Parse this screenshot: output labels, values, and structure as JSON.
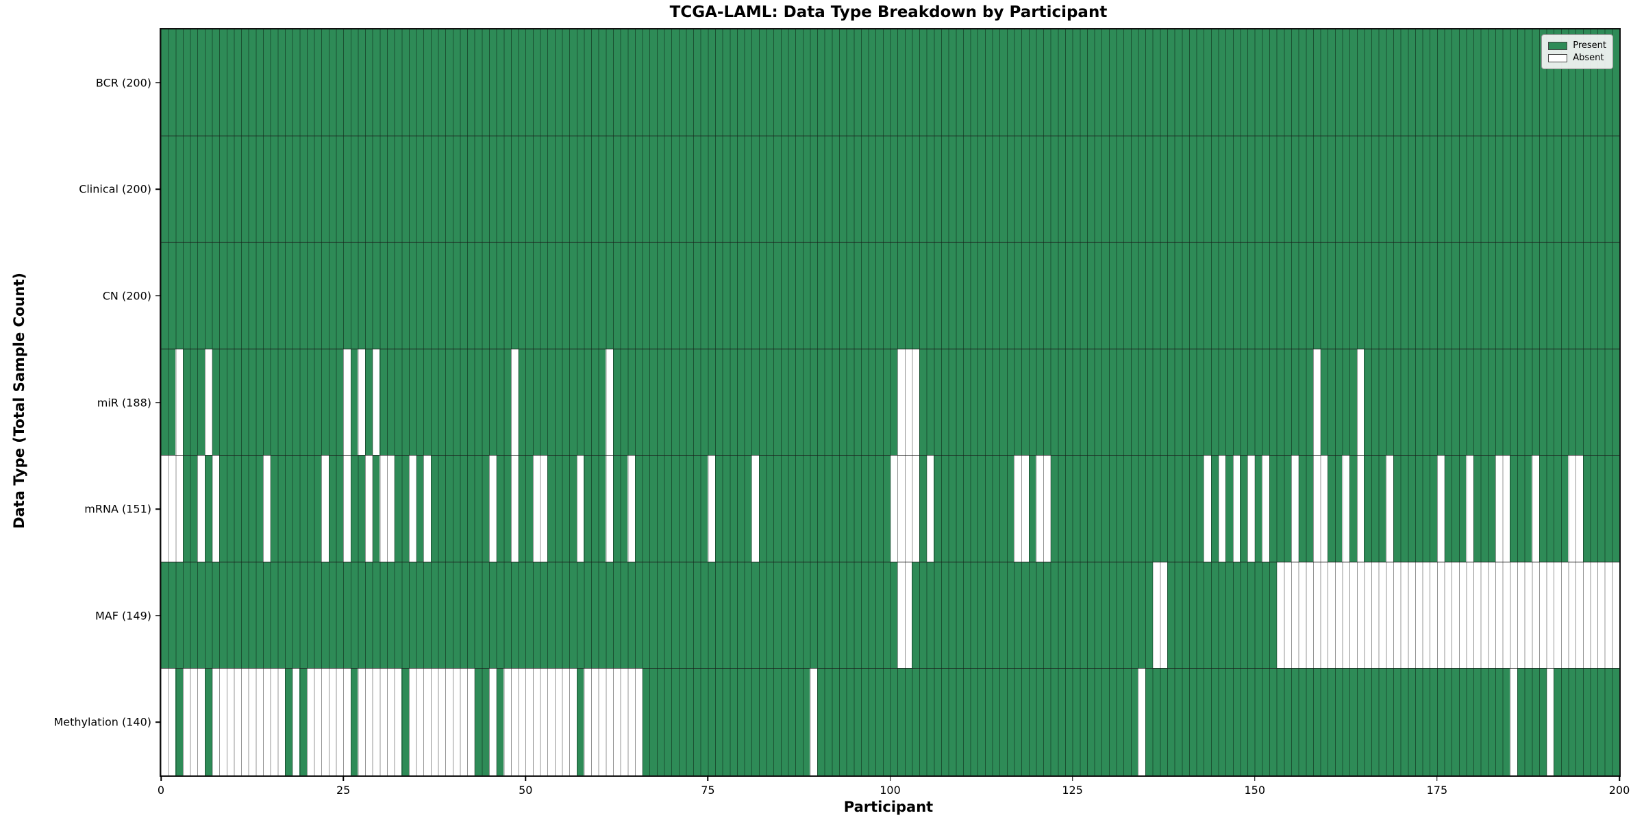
{
  "title": "TCGA-LAML: Data Type Breakdown by Participant",
  "axes": {
    "x_label": "Participant",
    "y_label": "Data Type (Total Sample Count)"
  },
  "legend": {
    "items": [
      {
        "label": "Present",
        "color": "#2e8b57"
      },
      {
        "label": "Absent",
        "color": "#ffffff"
      }
    ]
  },
  "colors": {
    "present": "#2e8b57",
    "absent": "#ffffff",
    "grid_line": "rgba(0,0,0,0.42)"
  },
  "chart_data": {
    "type": "heatmap",
    "title": "TCGA-LAML: Data Type Breakdown by Participant",
    "xlabel": "Participant",
    "ylabel": "Data Type (Total Sample Count)",
    "x_min": 0,
    "x_max": 200,
    "x_ticks": [
      0,
      25,
      50,
      75,
      100,
      125,
      150,
      175,
      200
    ],
    "n_participants": 200,
    "legend_entries": [
      "Present",
      "Absent"
    ],
    "grid": true,
    "rows": [
      {
        "label": "BCR (200)",
        "name": "BCR",
        "present_count": 200,
        "absent_participants": []
      },
      {
        "label": "Clinical (200)",
        "name": "Clinical",
        "present_count": 200,
        "absent_participants": []
      },
      {
        "label": "CN (200)",
        "name": "CN",
        "present_count": 200,
        "absent_participants": []
      },
      {
        "label": "miR (188)",
        "name": "miR",
        "present_count": 188,
        "absent_participants": [
          2,
          6,
          25,
          27,
          29,
          48,
          61,
          101,
          102,
          103,
          158,
          164
        ]
      },
      {
        "label": "mRNA (151)",
        "name": "mRNA",
        "present_count": 151,
        "absent_participants": [
          0,
          1,
          2,
          5,
          7,
          14,
          22,
          25,
          28,
          30,
          31,
          34,
          36,
          45,
          48,
          51,
          52,
          57,
          61,
          64,
          75,
          81,
          100,
          101,
          102,
          103,
          105,
          117,
          118,
          120,
          121,
          143,
          145,
          147,
          149,
          151,
          155,
          158,
          159,
          162,
          164,
          168,
          175,
          179,
          183,
          184,
          188,
          193,
          194
        ]
      },
      {
        "label": "MAF (149)",
        "name": "MAF",
        "present_count": 149,
        "absent_participants": [
          101,
          102,
          136,
          137,
          153,
          154,
          155,
          156,
          157,
          158,
          159,
          160,
          161,
          162,
          163,
          164,
          165,
          166,
          167,
          168,
          169,
          170,
          171,
          172,
          173,
          174,
          175,
          176,
          177,
          178,
          179,
          180,
          181,
          182,
          183,
          184,
          185,
          186,
          187,
          188,
          189,
          190,
          191,
          192,
          193,
          194,
          195,
          196,
          197,
          198,
          199
        ]
      },
      {
        "label": "Methylation (140)",
        "name": "Methylation",
        "present_count": 140,
        "absent_participants": [
          0,
          1,
          3,
          4,
          5,
          7,
          8,
          9,
          10,
          11,
          12,
          13,
          14,
          15,
          16,
          18,
          20,
          21,
          22,
          23,
          24,
          25,
          27,
          28,
          29,
          30,
          31,
          32,
          34,
          35,
          36,
          37,
          38,
          39,
          40,
          41,
          42,
          45,
          47,
          48,
          49,
          50,
          51,
          52,
          53,
          54,
          55,
          56,
          58,
          59,
          60,
          61,
          62,
          63,
          64,
          65,
          89,
          134,
          185,
          190
        ]
      }
    ]
  }
}
